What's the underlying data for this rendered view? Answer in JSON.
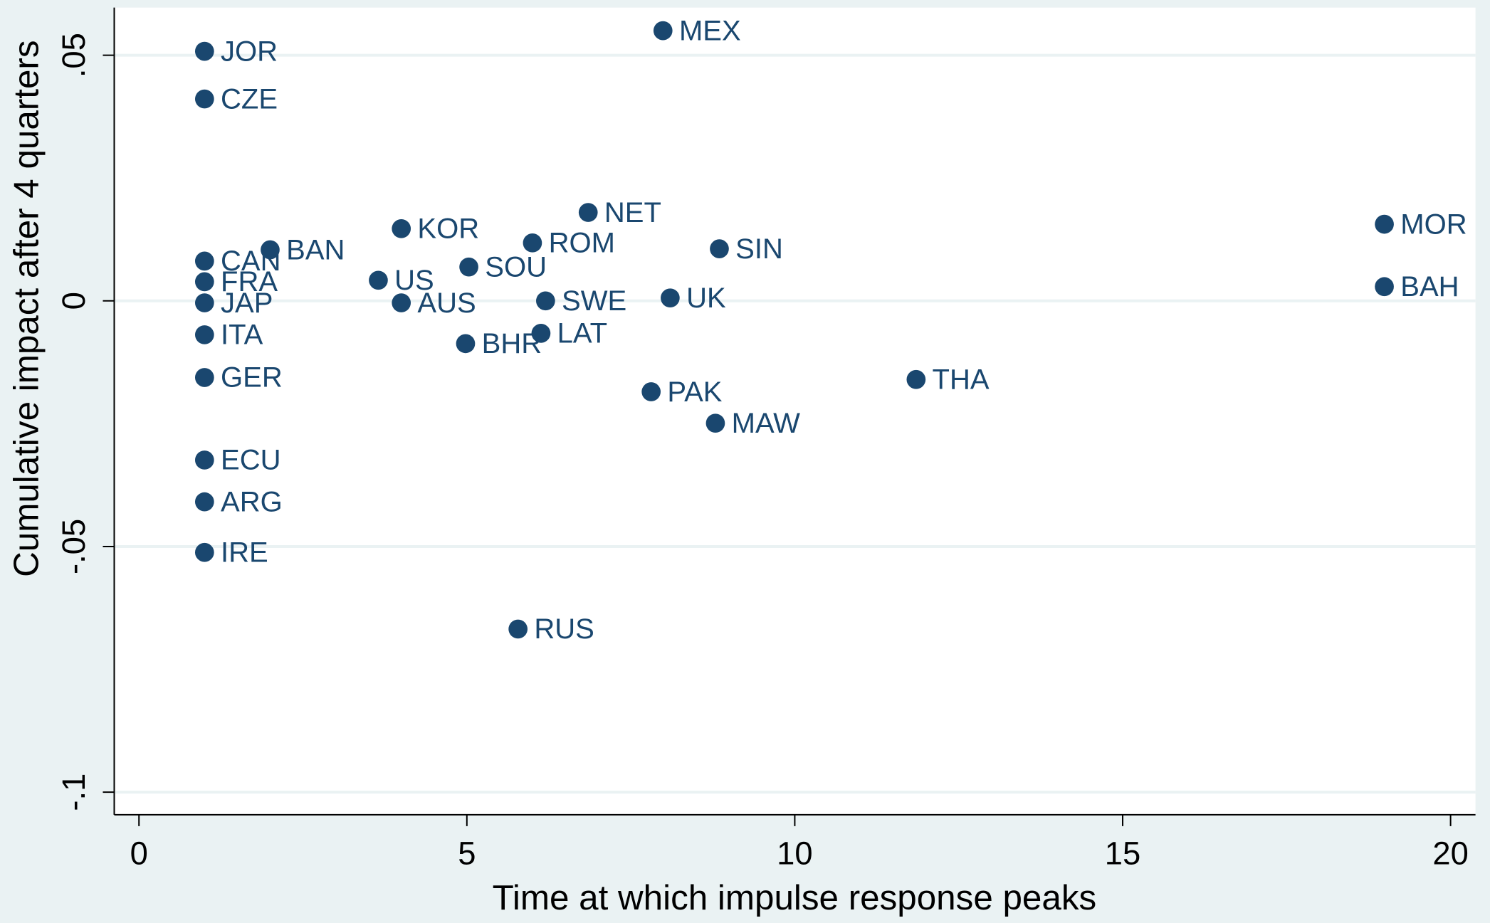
{
  "chart_data": {
    "type": "scatter",
    "x_label": "Time at which impulse response peaks",
    "y_label": "Cumulative impact after 4 quarters",
    "labels": [
      "JOR",
      "CZE",
      "CAN",
      "FRA",
      "JAP",
      "ITA",
      "GER",
      "ECU",
      "ARG",
      "IRE",
      "BAN",
      "KOR",
      "US",
      "AUS",
      "BHR",
      "SOU",
      "ROM",
      "NET",
      "SWE",
      "LAT",
      "RUS",
      "MEX",
      "PAK",
      "SIN",
      "UK",
      "MAW",
      "THA",
      "MOR",
      "BAH"
    ],
    "x": [
      1,
      1,
      1,
      1,
      1,
      1,
      1,
      1,
      1,
      1,
      2.0,
      4.0,
      3.65,
      4.0,
      4.98,
      5.03,
      6.0,
      6.85,
      6.2,
      6.13,
      5.78,
      7.99,
      7.81,
      8.85,
      8.1,
      8.79,
      11.85,
      18.99,
      18.99
    ],
    "values": [
      0.0508,
      0.0411,
      0.0081,
      0.0039,
      -0.0004,
      -0.0069,
      -0.0156,
      -0.0324,
      -0.0409,
      -0.0512,
      0.0104,
      0.0147,
      0.0042,
      -0.0004,
      -0.0087,
      0.0069,
      0.0118,
      0.018,
      0.0,
      -0.0066,
      -0.0668,
      0.055,
      -0.0185,
      0.0106,
      0.0006,
      -0.0249,
      -0.016,
      0.0156,
      0.0029
    ],
    "color": "#1a476f",
    "xlim": [
      -0.377,
      20.38
    ],
    "xticks": [
      0,
      5,
      10,
      15,
      20
    ],
    "ylim": [
      -0.1046,
      0.0597
    ],
    "yticks": [
      {
        "value": 0.05,
        "label": ".05"
      },
      0,
      {
        "value": -0.05,
        "label": "-.05"
      },
      {
        "value": -0.1,
        "label": "-.1"
      }
    ],
    "grid": true
  }
}
